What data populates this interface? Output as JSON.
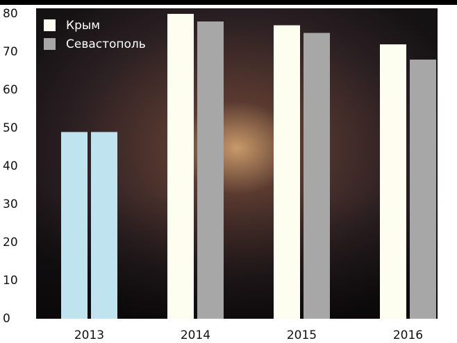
{
  "chart_data": {
    "type": "bar",
    "categories": [
      "2013",
      "2014",
      "2015",
      "2016"
    ],
    "series": [
      {
        "name": "Крым",
        "color": "#fefef0",
        "colors": [
          "#bfe4ef",
          "#fefef0",
          "#fefef0",
          "#fefef0"
        ],
        "values": [
          49,
          80,
          77,
          72
        ]
      },
      {
        "name": "Севастополь",
        "color": "#a7a7a7",
        "colors": [
          "#bfe4ef",
          "#a7a7a7",
          "#a7a7a7",
          "#a7a7a7"
        ],
        "values": [
          49,
          78,
          75,
          68
        ]
      }
    ],
    "ylim": [
      0,
      80
    ],
    "yticks": [
      0,
      10,
      20,
      30,
      40,
      50,
      60,
      70,
      80
    ],
    "legend": "upper left"
  }
}
